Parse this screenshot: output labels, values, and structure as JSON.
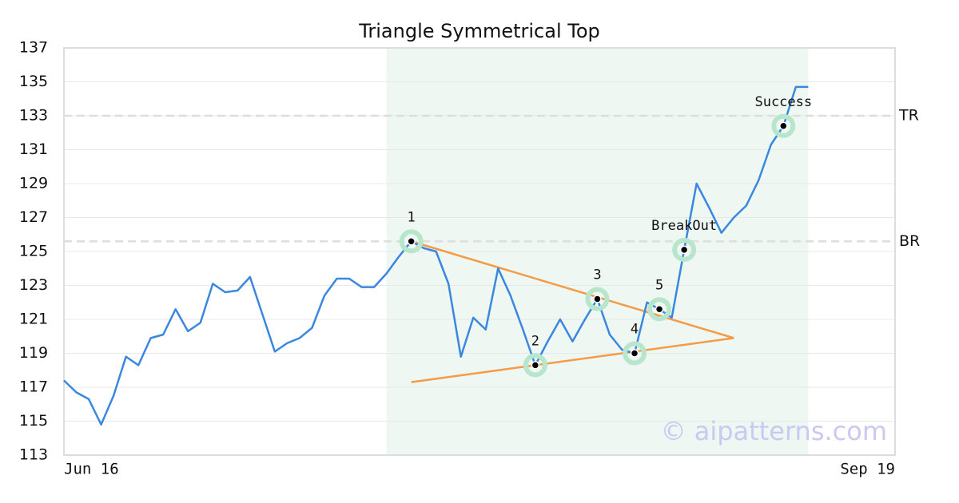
{
  "chart_data": {
    "type": "line",
    "title": "Triangle Symmetrical Top",
    "categories": [
      "Jun 16",
      null,
      null,
      null,
      null,
      null,
      null,
      null,
      null,
      null,
      null,
      null,
      null,
      null,
      null,
      null,
      null,
      null,
      null,
      null,
      null,
      null,
      null,
      null,
      null,
      null,
      null,
      null,
      null,
      null,
      null,
      null,
      null,
      null,
      null,
      null,
      null,
      null,
      null,
      null,
      null,
      null,
      null,
      null,
      null,
      null,
      null,
      null,
      null,
      null,
      null,
      null,
      null,
      null,
      null,
      null,
      null,
      null,
      null,
      null,
      null,
      null,
      null,
      null,
      null,
      null,
      null,
      "Sep 19"
    ],
    "series": [
      {
        "color": "#3a87e0",
        "values": [
          117.4,
          116.7,
          116.3,
          114.8,
          116.5,
          118.8,
          118.3,
          119.9,
          120.1,
          121.6,
          120.3,
          120.8,
          123.1,
          122.6,
          122.7,
          123.5,
          121.3,
          119.1,
          119.6,
          119.9,
          120.5,
          122.4,
          123.4,
          123.4,
          122.9,
          122.9,
          123.7,
          124.7,
          125.6,
          125.2,
          125.0,
          123.1,
          118.8,
          121.1,
          120.4,
          124.0,
          122.4,
          120.4,
          118.3,
          119.7,
          121.0,
          119.7,
          121.0,
          122.2,
          120.1,
          119.2,
          119.0,
          122.0,
          121.6,
          121.1,
          125.1,
          129.0,
          127.6,
          126.1,
          127.0,
          127.7,
          129.2,
          131.3,
          132.4,
          134.7,
          134.7,
          null,
          null,
          null,
          null,
          null,
          null,
          null
        ]
      }
    ],
    "ylim": [
      113,
      137
    ],
    "yticks": [
      113,
      115,
      117,
      119,
      121,
      123,
      125,
      127,
      129,
      131,
      133,
      135,
      137
    ],
    "grid": true,
    "highlight": [
      26,
      60
    ],
    "highlight_color": "#eef7f2",
    "levels": [
      {
        "label": "TR",
        "value": 133
      },
      {
        "label": "BR",
        "value": 125.6
      }
    ],
    "trendline_color": "#f59a45",
    "trendlines": [
      {
        "x": [
          28,
          54
        ],
        "y": [
          125.6,
          119.9
        ]
      },
      {
        "x": [
          28,
          54
        ],
        "y": [
          117.3,
          119.9
        ]
      }
    ],
    "annotations": [
      {
        "index": 28,
        "label": "1"
      },
      {
        "index": 38,
        "label": "2"
      },
      {
        "index": 43,
        "label": "3"
      },
      {
        "index": 46,
        "label": "4"
      },
      {
        "index": 48,
        "label": "5"
      },
      {
        "index": 50,
        "label": "BreakOut"
      },
      {
        "index": 58,
        "label": "Success"
      }
    ],
    "watermark": "© aipatterns.com"
  }
}
